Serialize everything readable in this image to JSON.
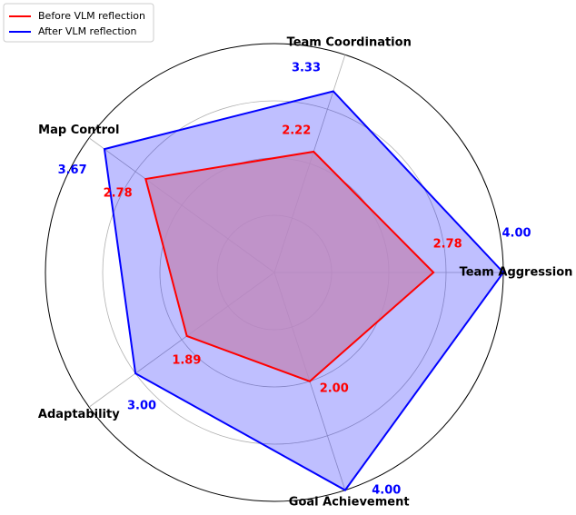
{
  "chart_data": {
    "type": "radar",
    "categories": [
      "Team Aggression",
      "Team Coordination",
      "Map Control",
      "Adaptability",
      "Goal Achievement"
    ],
    "series": [
      {
        "name": "Before VLM reflection",
        "color": "#ff0000",
        "fill": "#c08bc0",
        "values": [
          2.78,
          2.22,
          2.78,
          1.89,
          2.0
        ],
        "value_labels": [
          "2.78",
          "2.22",
          "2.78",
          "1.89",
          "2.00"
        ]
      },
      {
        "name": "After VLM reflection",
        "color": "#0000ff",
        "fill": "#0000ff",
        "values": [
          4.0,
          3.33,
          3.67,
          3.0,
          4.0
        ],
        "value_labels": [
          "4.00",
          "3.33",
          "3.67",
          "3.00",
          "4.00"
        ]
      }
    ],
    "ylim": [
      0,
      4
    ],
    "yticks": [
      1,
      2,
      3,
      4
    ],
    "grid": true,
    "legend": "upper left"
  }
}
